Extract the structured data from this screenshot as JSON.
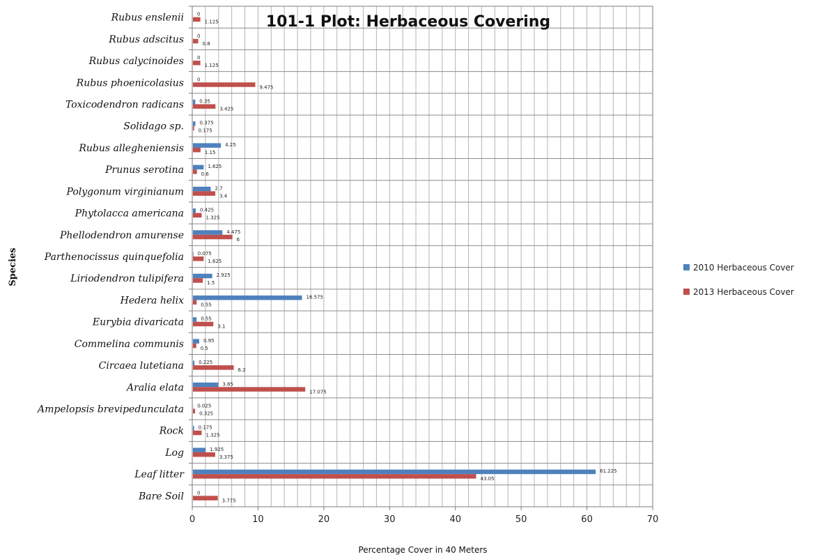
{
  "chart_data": {
    "type": "bar",
    "orientation": "horizontal",
    "title": "101-1 Plot: Herbaceous Covering",
    "xlabel": "Percentage Cover in 40 Meters",
    "ylabel": "Species",
    "xlim": [
      0,
      70
    ],
    "x_ticks": [
      "0",
      "10",
      "20",
      "30",
      "40",
      "50",
      "60",
      "70"
    ],
    "grid": true,
    "legend_position": "right",
    "categories": [
      "Rubus enslenii",
      "Rubus adscitus",
      "Rubus calycinoides",
      "Rubus phoenicolasius",
      "Toxicodendron radicans",
      "Solidago sp.",
      "Rubus allegheniensis",
      "Prunus serotina",
      "Polygonum virginianum",
      "Phytolacca americana",
      "Phellodendron amurense",
      "Parthenocissus quinquefolia",
      "Liriodendron tulipifera",
      "Hedera helix",
      "Eurybia divaricata",
      "Commelina communis",
      "Circaea lutetiana",
      "Aralia elata",
      "Ampelopsis brevipedunculata",
      "Rock",
      "Log",
      "Leaf litter",
      "Bare Soil"
    ],
    "series": [
      {
        "name": "2010 Herbaceous Cover",
        "color": "#4F81BD",
        "values": [
          0,
          0,
          0,
          0,
          0.35,
          0.375,
          4.25,
          1.625,
          2.7,
          0.425,
          4.475,
          0.075,
          2.925,
          16.575,
          0.55,
          0.95,
          0.225,
          3.85,
          0.025,
          0.175,
          1.925,
          61.225,
          0
        ],
        "labels": [
          "0",
          "0",
          "0",
          "0",
          "0.35",
          "0.375",
          "4.25",
          "1.625",
          "2.7",
          "0.425",
          "4.475",
          "0.075",
          "2.925",
          "16.575",
          "0.55",
          "0.95",
          "0.225",
          "3.85",
          "0.025",
          "0.175",
          "1.925",
          "61.225",
          "0"
        ]
      },
      {
        "name": "2013 Herbaceous Cover",
        "color": "#C0504D",
        "values": [
          1.125,
          0.8,
          1.125,
          9.475,
          3.425,
          0.175,
          1.15,
          0.6,
          3.4,
          1.325,
          6,
          1.625,
          1.5,
          0.55,
          3.1,
          0.5,
          6.2,
          17.075,
          0.325,
          1.325,
          3.375,
          43.05,
          3.775
        ],
        "labels": [
          "1.125",
          "0.8",
          "1.125",
          "9.475",
          "3.425",
          "0.175",
          "1.15",
          "0.6",
          "3.4",
          "1.325",
          "6",
          "1.625",
          "1.5",
          "0.55",
          "3.1",
          "0.5",
          "6.2",
          "17.075",
          "0.325",
          "1.325",
          "3.375",
          "43.05",
          "3.775"
        ]
      }
    ]
  }
}
